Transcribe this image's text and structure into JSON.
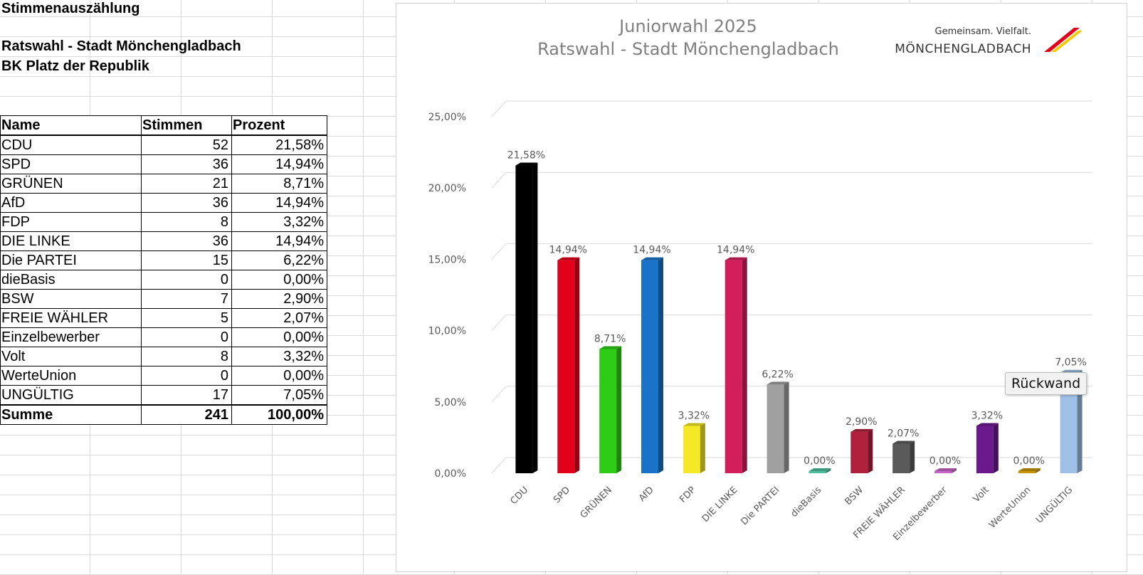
{
  "sheet": {
    "heading": "Stimmenauszählung",
    "subtitle_line1": "Ratswahl - Stadt Mönchengladbach",
    "subtitle_line2": "BK Platz der Republik"
  },
  "table": {
    "headers": [
      "Name",
      "Stimmen",
      "Prozent"
    ],
    "rows": [
      {
        "name": "CDU",
        "votes": "52",
        "pct": "21,58%"
      },
      {
        "name": "SPD",
        "votes": "36",
        "pct": "14,94%"
      },
      {
        "name": "GRÜNEN",
        "votes": "21",
        "pct": "8,71%"
      },
      {
        "name": "AfD",
        "votes": "36",
        "pct": "14,94%"
      },
      {
        "name": "FDP",
        "votes": "8",
        "pct": "3,32%"
      },
      {
        "name": "DIE LINKE",
        "votes": "36",
        "pct": "14,94%"
      },
      {
        "name": "Die PARTEI",
        "votes": "15",
        "pct": "6,22%"
      },
      {
        "name": "dieBasis",
        "votes": "0",
        "pct": "0,00%"
      },
      {
        "name": "BSW",
        "votes": "7",
        "pct": "2,90%"
      },
      {
        "name": "FREIE WÄHLER",
        "votes": "5",
        "pct": "2,07%"
      },
      {
        "name": "Einzelbewerber",
        "votes": "0",
        "pct": "0,00%"
      },
      {
        "name": "Volt",
        "votes": "8",
        "pct": "3,32%"
      },
      {
        "name": "WerteUnion",
        "votes": "0",
        "pct": "0,00%"
      },
      {
        "name": "UNGÜLTIG",
        "votes": "17",
        "pct": "7,05%"
      }
    ],
    "sum": {
      "name": "Summe",
      "votes": "241",
      "pct": "100,00%"
    }
  },
  "logo": {
    "line1": "Gemeinsam. Vielfalt.",
    "line2": "MÖNCHENGLADBACH"
  },
  "tooltip": "Rückwand",
  "chart_data": {
    "type": "bar",
    "title": "Juniorwahl 2025",
    "subtitle": "Ratswahl - Stadt Mönchengladbach",
    "categories": [
      "CDU",
      "SPD",
      "GRÜNEN",
      "AfD",
      "FDP",
      "DIE LINKE",
      "Die PARTEI",
      "dieBasis",
      "BSW",
      "FREIE WÄHLER",
      "Einzelbewerber",
      "Volt",
      "WerteUnion",
      "UNGÜLTIG"
    ],
    "values": [
      21.58,
      14.94,
      8.71,
      14.94,
      3.32,
      14.94,
      6.22,
      0.0,
      2.9,
      2.07,
      0.0,
      3.32,
      0.0,
      7.05
    ],
    "data_labels": [
      "21,58%",
      "14,94%",
      "8,71%",
      "14,94%",
      "3,32%",
      "14,94%",
      "6,22%",
      "0,00%",
      "2,90%",
      "2,07%",
      "0,00%",
      "3,32%",
      "0,00%",
      "7,05%"
    ],
    "colors": [
      "#000000",
      "#e2001a",
      "#2ecc17",
      "#1a73c8",
      "#f5e826",
      "#d21e5a",
      "#a0a0a0",
      "#4fbf9f",
      "#b0203a",
      "#5a5a5a",
      "#c864c8",
      "#6a1a8a",
      "#c89600",
      "#9fc0e6"
    ],
    "y_ticks": [
      "0,00%",
      "5,00%",
      "10,00%",
      "15,00%",
      "20,00%",
      "25,00%"
    ],
    "ylim": [
      0,
      25
    ],
    "grid": true,
    "style": "3d-column"
  }
}
